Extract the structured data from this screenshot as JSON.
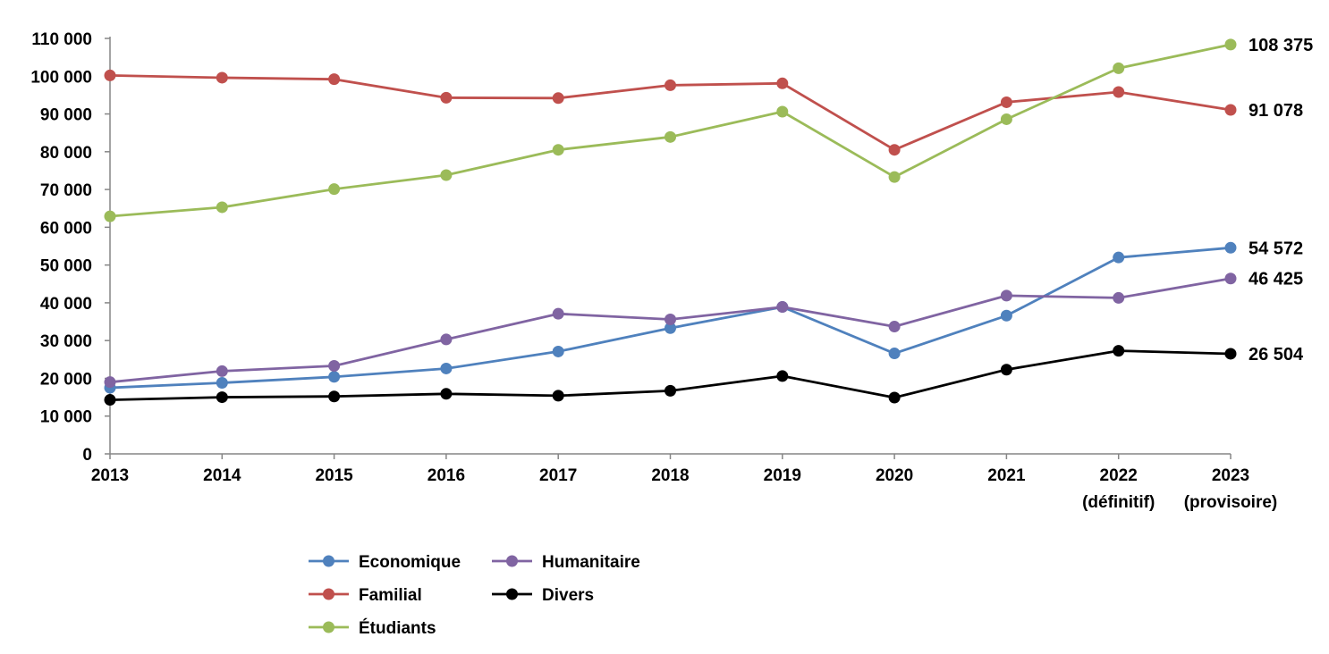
{
  "chart_data": {
    "type": "line",
    "title": "",
    "xlabel": "",
    "ylabel": "",
    "categories": [
      [
        "2013"
      ],
      [
        "2014"
      ],
      [
        "2015"
      ],
      [
        "2016"
      ],
      [
        "2017"
      ],
      [
        "2018"
      ],
      [
        "2019"
      ],
      [
        "2020"
      ],
      [
        "2021"
      ],
      [
        "2022",
        "(définitif)"
      ],
      [
        "2023",
        "(provisoire)"
      ]
    ],
    "ylim": [
      0,
      110000
    ],
    "yticks": [
      0,
      10000,
      20000,
      30000,
      40000,
      50000,
      60000,
      70000,
      80000,
      90000,
      100000,
      110000
    ],
    "ytick_labels": [
      "0",
      "10 000",
      "20 000",
      "30 000",
      "40 000",
      "50 000",
      "60 000",
      "70 000",
      "80 000",
      "90 000",
      "100 000",
      "110 000"
    ],
    "grid": false,
    "legend_position": "bottom",
    "series": [
      {
        "name": "Economique",
        "color": "#4F81BD",
        "values": [
          17500,
          18800,
          20400,
          22600,
          27100,
          33300,
          38900,
          26600,
          36600,
          52000,
          54572
        ],
        "end_label": "54 572"
      },
      {
        "name": "Familial",
        "color": "#C0504D",
        "values": [
          100200,
          99600,
          99200,
          94300,
          94200,
          97600,
          98100,
          80500,
          93100,
          95800,
          91078
        ],
        "end_label": "91 078"
      },
      {
        "name": "Étudiants",
        "color": "#9BBB59",
        "values": [
          62900,
          65300,
          70100,
          73800,
          80500,
          83900,
          90600,
          73300,
          88600,
          102100,
          108375
        ],
        "end_label": "108 375"
      },
      {
        "name": "Humanitaire",
        "color": "#8064A2",
        "values": [
          19000,
          21900,
          23300,
          30300,
          37100,
          35600,
          38900,
          33700,
          41900,
          41300,
          46425
        ],
        "end_label": "46 425"
      },
      {
        "name": "Divers",
        "color": "#000000",
        "values": [
          14300,
          15000,
          15200,
          15900,
          15400,
          16700,
          20600,
          14900,
          22300,
          27300,
          26504
        ],
        "end_label": "26 504"
      }
    ],
    "legend_order": [
      "Economique",
      "Humanitaire",
      "Familial",
      "Divers",
      "Étudiants"
    ]
  }
}
